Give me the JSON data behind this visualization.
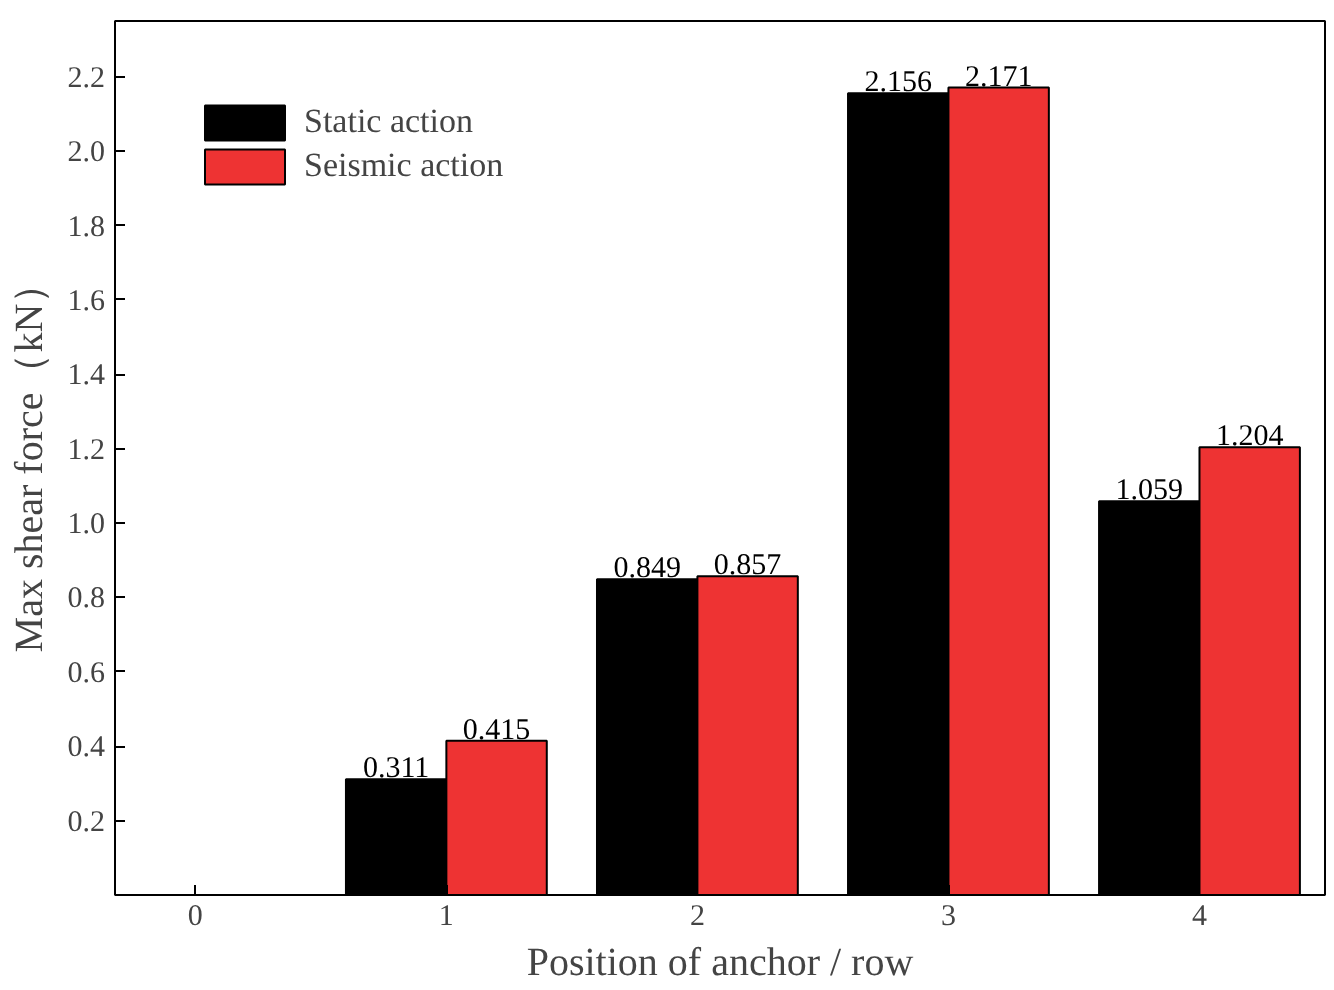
{
  "chart_data": {
    "type": "bar",
    "xlabel": "Position of anchor / row",
    "ylabel": "Max shear force（kN）",
    "x": [
      1,
      2,
      3,
      4
    ],
    "series": [
      {
        "name": "Static action",
        "color": "#000000",
        "values": [
          0.311,
          0.849,
          2.156,
          1.059
        ]
      },
      {
        "name": "Seismic action",
        "color": "#ee3333",
        "values": [
          0.415,
          0.857,
          2.171,
          1.204
        ]
      }
    ],
    "xlim": [
      -0.32,
      4.5
    ],
    "xticks": [
      0,
      1,
      2,
      3,
      4
    ],
    "ylim": [
      0,
      2.35
    ],
    "yticks": [
      0.2,
      0.4,
      0.6,
      0.8,
      {
        "value": 1,
        "label": "1.0"
      },
      1.2,
      1.4,
      1.6,
      1.8,
      {
        "value": 2,
        "label": "2.0"
      },
      2.2
    ],
    "data_labels": true,
    "legend": "top left",
    "grid": false
  }
}
